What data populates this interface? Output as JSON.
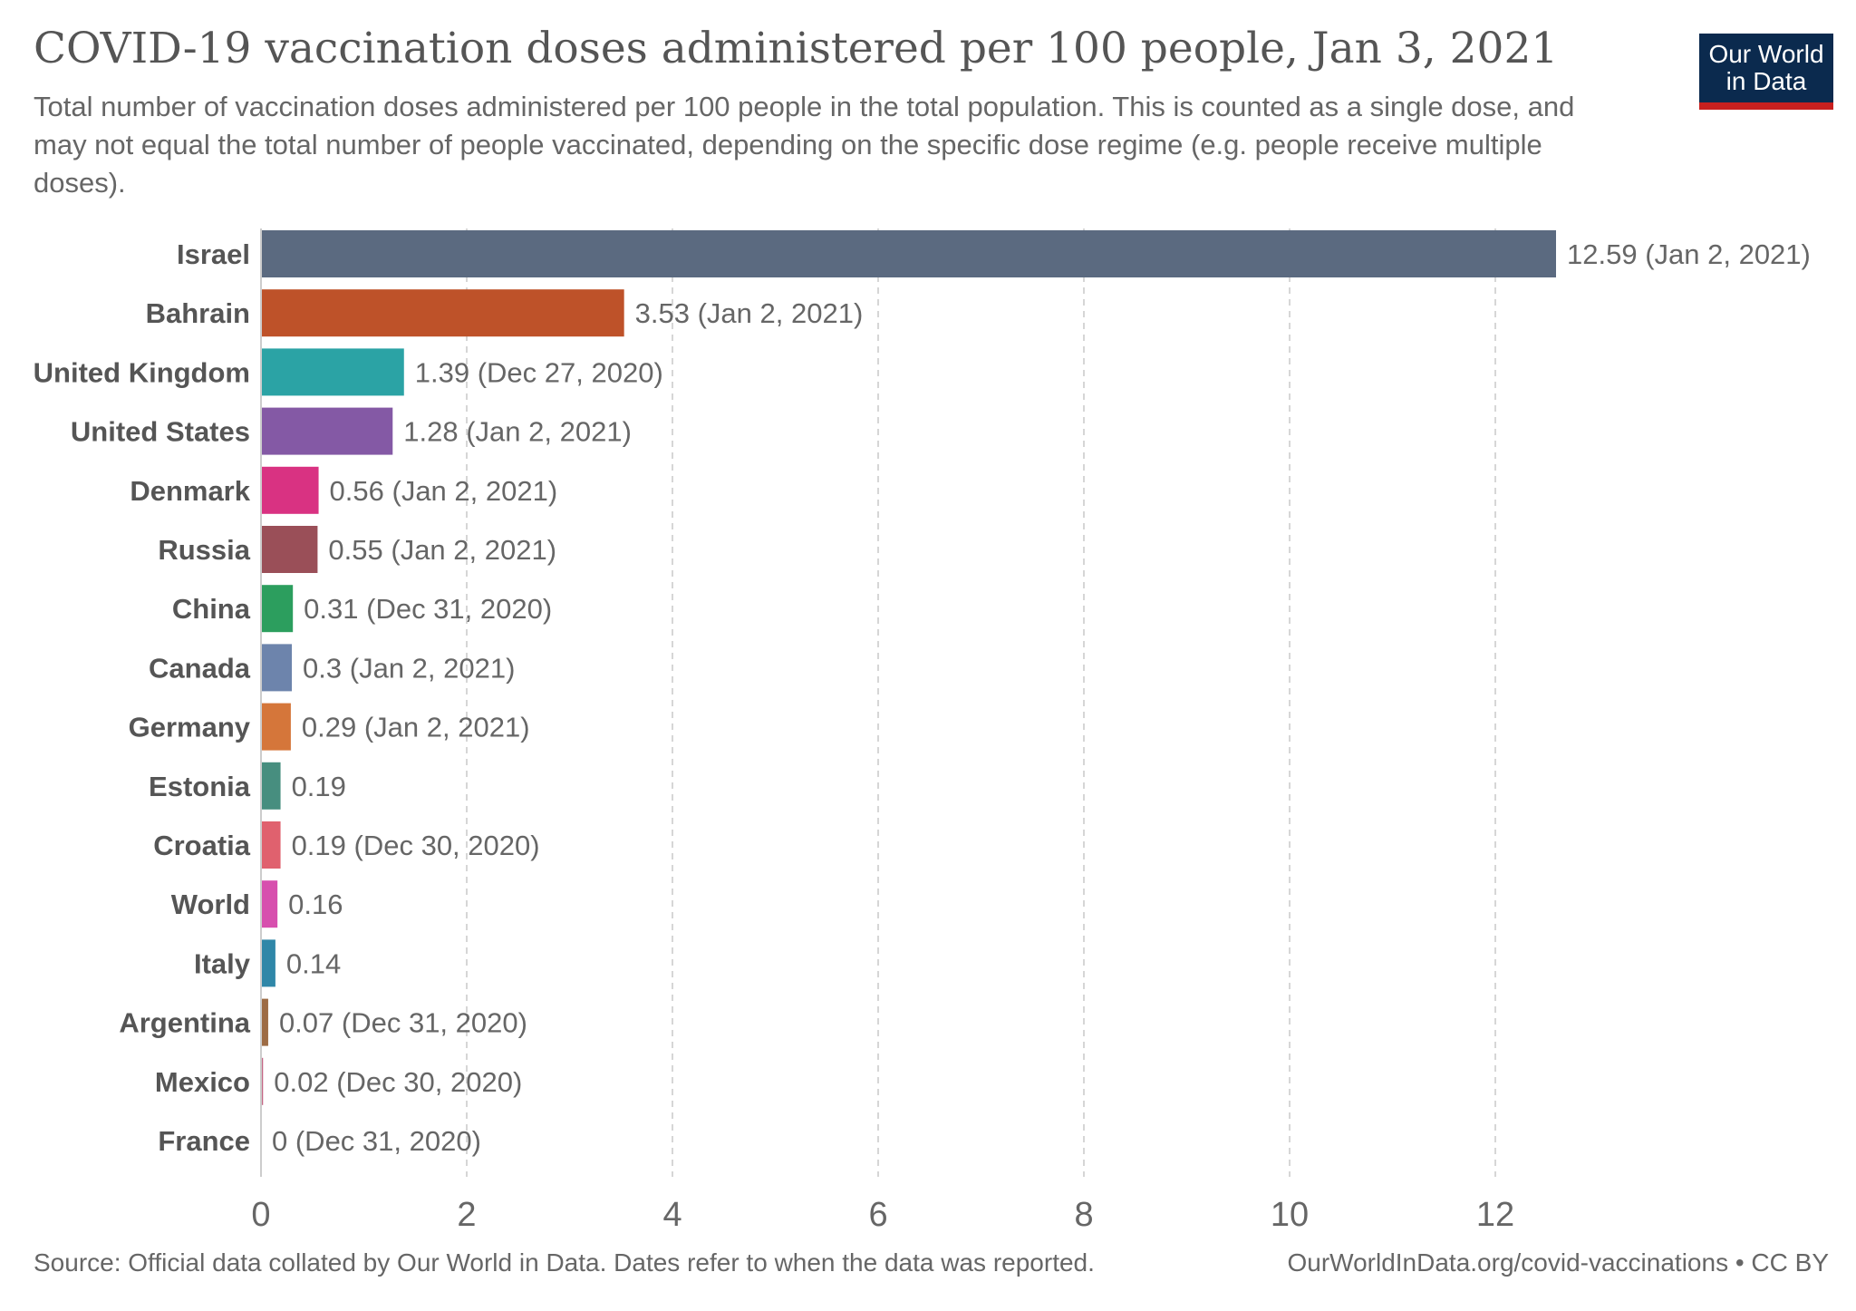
{
  "header": {
    "title": "COVID-19 vaccination doses administered per 100 people, Jan 3, 2021",
    "subtitle": "Total number of vaccination doses administered per 100 people in the total population. This is counted as a single dose, and may not equal the total number of people vaccinated, depending on the specific dose regime (e.g. people receive multiple doses).",
    "logo_line1": "Our World",
    "logo_line2": "in Data"
  },
  "footer": {
    "source": "Source: Official data collated by Our World in Data. Dates refer to when the data was reported.",
    "link": "OurWorldInData.org/covid-vaccinations • CC BY"
  },
  "chart_data": {
    "type": "bar",
    "orientation": "horizontal",
    "xlim": [
      0,
      12.59
    ],
    "xticks": [
      0,
      2,
      4,
      6,
      8,
      10,
      12
    ],
    "grid": true,
    "categories": [
      "Israel",
      "Bahrain",
      "United Kingdom",
      "United States",
      "Denmark",
      "Russia",
      "China",
      "Canada",
      "Germany",
      "Estonia",
      "Croatia",
      "World",
      "Italy",
      "Argentina",
      "Mexico",
      "France"
    ],
    "values": [
      12.59,
      3.53,
      1.39,
      1.28,
      0.56,
      0.55,
      0.31,
      0.3,
      0.29,
      0.19,
      0.19,
      0.16,
      0.14,
      0.07,
      0.02,
      0
    ],
    "value_labels": [
      "12.59 (Jan 2, 2021)",
      "3.53 (Jan 2, 2021)",
      "1.39 (Dec 27, 2020)",
      "1.28 (Jan 2, 2021)",
      "0.56 (Jan 2, 2021)",
      "0.55 (Jan 2, 2021)",
      "0.31 (Dec 31, 2020)",
      "0.3 (Jan 2, 2021)",
      "0.29 (Jan 2, 2021)",
      "0.19",
      "0.19 (Dec 30, 2020)",
      "0.16",
      "0.14",
      "0.07 (Dec 31, 2020)",
      "0.02 (Dec 30, 2020)",
      "0 (Dec 31, 2020)"
    ],
    "colors": [
      "#5b6a80",
      "#be5229",
      "#2ba3a5",
      "#8459a5",
      "#d93282",
      "#9a4f58",
      "#2c9e5e",
      "#6d84ac",
      "#d5763a",
      "#478e7f",
      "#e0616e",
      "#d74fae",
      "#2f87a8",
      "#9d6b44",
      "#c46685",
      "#b0b0b0"
    ]
  }
}
